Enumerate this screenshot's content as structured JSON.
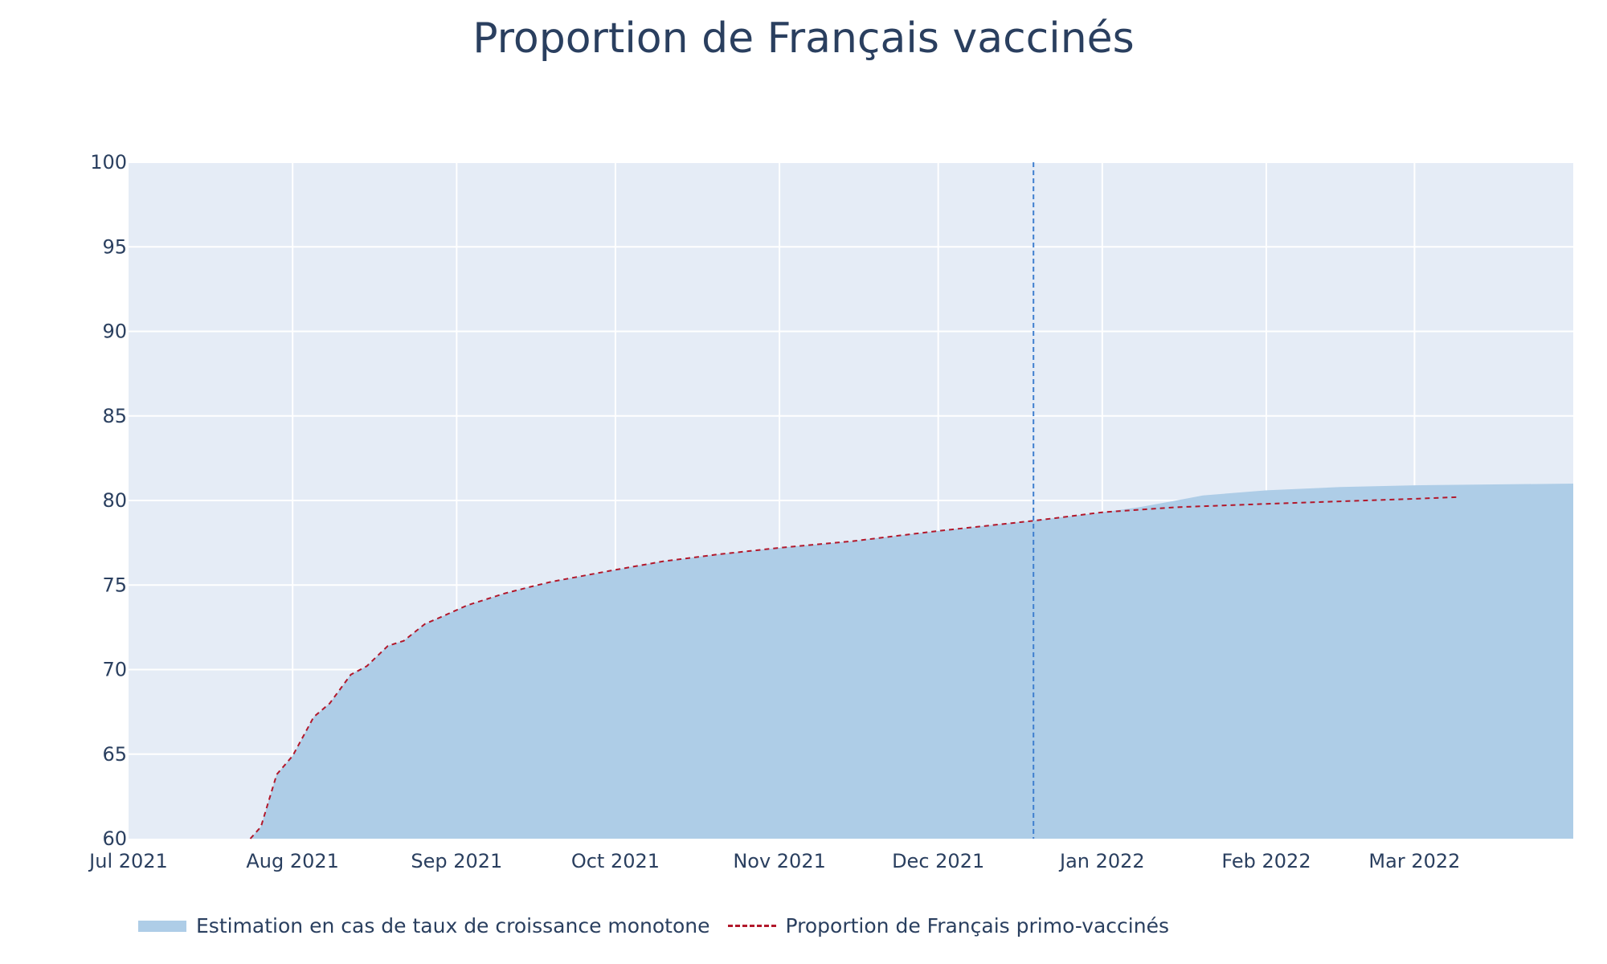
{
  "title": "Proportion de Français vaccinés",
  "colors": {
    "plot_background": "#e5ecf6",
    "grid": "#ffffff",
    "area_fill": "#aecde7",
    "primo_line": "#b2182b",
    "vline": "#3f7fcf",
    "text": "#2a3f5f"
  },
  "chart_data": {
    "type": "area",
    "title": "Proportion de Français vaccinés",
    "xlabel": "",
    "ylabel": "",
    "xlim": [
      "2021-07-01",
      "2022-03-31"
    ],
    "ylim": [
      60,
      100
    ],
    "grid": true,
    "legend_position": "bottom-left",
    "x_ticks": [
      {
        "date": "2021-07-01",
        "label": "Jul 2021"
      },
      {
        "date": "2021-08-01",
        "label": "Aug 2021"
      },
      {
        "date": "2021-09-01",
        "label": "Sep 2021"
      },
      {
        "date": "2021-10-01",
        "label": "Oct 2021"
      },
      {
        "date": "2021-11-01",
        "label": "Nov 2021"
      },
      {
        "date": "2021-12-01",
        "label": "Dec 2021"
      },
      {
        "date": "2022-01-01",
        "label": "Jan 2022"
      },
      {
        "date": "2022-02-01",
        "label": "Feb 2022"
      },
      {
        "date": "2022-03-01",
        "label": "Mar 2022"
      }
    ],
    "y_ticks": [
      60,
      65,
      70,
      75,
      80,
      85,
      90,
      95,
      100
    ],
    "vertical_marker_date": "2021-12-19",
    "series": [
      {
        "name": "Estimation en cas de taux de croissance monotone",
        "style": "area",
        "points": [
          [
            "2021-07-24",
            60.0
          ],
          [
            "2021-07-26",
            60.7
          ],
          [
            "2021-07-29",
            63.8
          ],
          [
            "2021-08-01",
            64.9
          ],
          [
            "2021-08-05",
            67.2
          ],
          [
            "2021-08-08",
            68.0
          ],
          [
            "2021-08-12",
            69.7
          ],
          [
            "2021-08-15",
            70.2
          ],
          [
            "2021-08-19",
            71.4
          ],
          [
            "2021-08-22",
            71.7
          ],
          [
            "2021-08-26",
            72.7
          ],
          [
            "2021-08-29",
            73.1
          ],
          [
            "2021-09-03",
            73.8
          ],
          [
            "2021-09-06",
            74.1
          ],
          [
            "2021-09-10",
            74.5
          ],
          [
            "2021-09-15",
            74.9
          ],
          [
            "2021-09-19",
            75.2
          ],
          [
            "2021-10-01",
            75.9
          ],
          [
            "2021-10-10",
            76.4
          ],
          [
            "2021-10-20",
            76.8
          ],
          [
            "2021-11-01",
            77.2
          ],
          [
            "2021-11-15",
            77.6
          ],
          [
            "2021-12-01",
            78.2
          ],
          [
            "2021-12-19",
            78.8
          ],
          [
            "2022-01-01",
            79.3
          ],
          [
            "2022-01-08",
            79.6
          ],
          [
            "2022-01-15",
            80.0
          ],
          [
            "2022-01-20",
            80.3
          ],
          [
            "2022-02-01",
            80.6
          ],
          [
            "2022-02-15",
            80.8
          ],
          [
            "2022-03-01",
            80.9
          ],
          [
            "2022-03-31",
            81.0
          ]
        ]
      },
      {
        "name": "Proportion de Français primo-vaccinés",
        "style": "dashed-line",
        "points": [
          [
            "2021-07-24",
            60.0
          ],
          [
            "2021-07-26",
            60.7
          ],
          [
            "2021-07-29",
            63.8
          ],
          [
            "2021-08-01",
            64.9
          ],
          [
            "2021-08-05",
            67.2
          ],
          [
            "2021-08-08",
            68.0
          ],
          [
            "2021-08-12",
            69.7
          ],
          [
            "2021-08-15",
            70.2
          ],
          [
            "2021-08-19",
            71.4
          ],
          [
            "2021-08-22",
            71.7
          ],
          [
            "2021-08-26",
            72.7
          ],
          [
            "2021-08-29",
            73.1
          ],
          [
            "2021-09-03",
            73.8
          ],
          [
            "2021-09-06",
            74.1
          ],
          [
            "2021-09-10",
            74.5
          ],
          [
            "2021-09-15",
            74.9
          ],
          [
            "2021-09-19",
            75.2
          ],
          [
            "2021-10-01",
            75.9
          ],
          [
            "2021-10-10",
            76.4
          ],
          [
            "2021-10-20",
            76.8
          ],
          [
            "2021-11-01",
            77.2
          ],
          [
            "2021-11-15",
            77.6
          ],
          [
            "2021-12-01",
            78.2
          ],
          [
            "2021-12-19",
            78.8
          ],
          [
            "2022-01-01",
            79.3
          ],
          [
            "2022-01-15",
            79.6
          ],
          [
            "2022-02-01",
            79.8
          ],
          [
            "2022-02-15",
            79.95
          ],
          [
            "2022-03-01",
            80.1
          ],
          [
            "2022-03-09",
            80.2
          ]
        ]
      }
    ]
  }
}
